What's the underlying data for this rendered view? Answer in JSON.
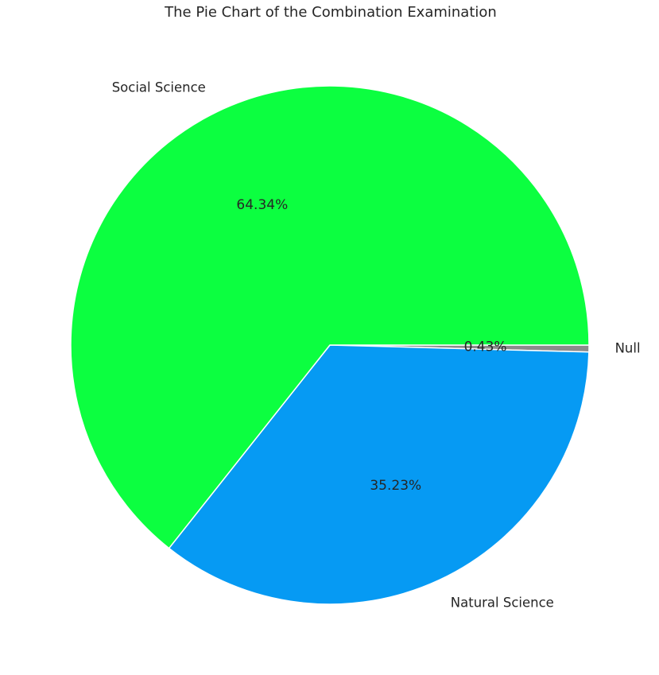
{
  "chart_data": {
    "type": "pie",
    "title": "The Pie Chart of the Combination Examination",
    "slices": [
      {
        "label": "Null",
        "value": 0.43,
        "pct_label": "0.43%",
        "color": "#8c8c8c"
      },
      {
        "label": "Natural Science",
        "value": 35.23,
        "pct_label": "35.23%",
        "color": "#069af3"
      },
      {
        "label": "Social Science",
        "value": 64.34,
        "pct_label": "64.34%",
        "color": "#0cff40"
      }
    ],
    "direction": "clockwise",
    "edge_color": "#ffffff"
  }
}
